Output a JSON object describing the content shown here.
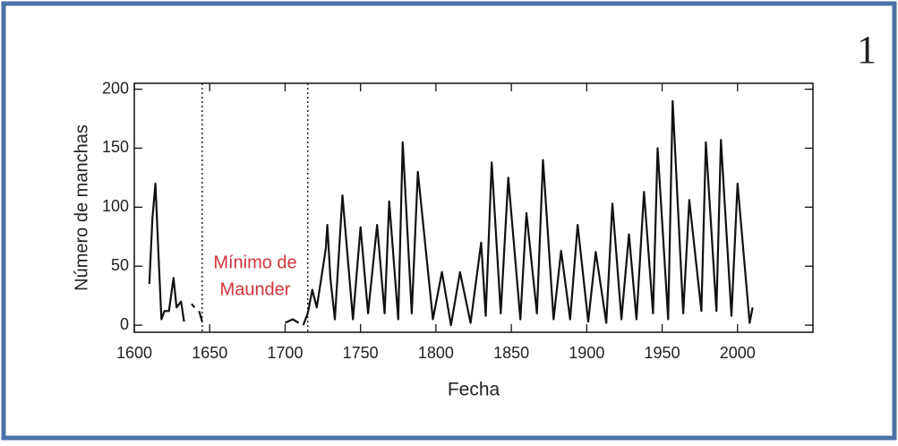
{
  "chart_data": {
    "type": "line",
    "panel_label": "1",
    "xlabel": "Fecha",
    "ylabel": "Número de manchas",
    "annotation_lines": [
      "Mínimo de",
      "Maunder"
    ],
    "annotation_color": "#d0343a",
    "vlines": [
      1645,
      1715
    ],
    "xlim": [
      1600,
      2050
    ],
    "ylim": [
      -6,
      205
    ],
    "xticks": [
      1600,
      1650,
      1700,
      1750,
      1800,
      1850,
      1900,
      1950,
      2000
    ],
    "yticks": [
      0,
      50,
      100,
      150,
      200
    ],
    "series": [
      {
        "color": "#111111",
        "x": [
          1610,
          1612,
          1614,
          1616,
          1618,
          1620,
          1623,
          1626,
          1628,
          1631,
          1633,
          null,
          1638,
          1640,
          null,
          1643,
          1645,
          null,
          1700,
          1705,
          1709,
          null,
          1712,
          1715,
          1718,
          1721,
          1724,
          1727,
          1728,
          1730,
          1733,
          1738,
          1745,
          1750,
          1755,
          1761,
          1766,
          1769,
          1775,
          1778,
          1784,
          1788,
          1798,
          1804,
          1810,
          1816,
          1823,
          1830,
          1833,
          1837,
          1843,
          1848,
          1856,
          1860,
          1867,
          1871,
          1878,
          1883,
          1889,
          1894,
          1901,
          1906,
          1913,
          1917,
          1923,
          1928,
          1933,
          1938,
          1944,
          1947,
          1954,
          1957,
          1964,
          1968,
          1976,
          1979,
          1986,
          1989,
          1996,
          2000,
          2008,
          2010
        ],
        "values": [
          35,
          90,
          120,
          60,
          5,
          12,
          12,
          40,
          15,
          20,
          3,
          null,
          18,
          15,
          null,
          12,
          3,
          null,
          2,
          5,
          2,
          null,
          0,
          10,
          30,
          15,
          40,
          65,
          85,
          40,
          5,
          110,
          5,
          83,
          10,
          85,
          10,
          105,
          5,
          155,
          10,
          130,
          5,
          45,
          0,
          45,
          2,
          70,
          8,
          138,
          10,
          125,
          5,
          95,
          10,
          140,
          5,
          63,
          5,
          85,
          3,
          62,
          2,
          103,
          5,
          77,
          5,
          113,
          10,
          150,
          5,
          190,
          10,
          106,
          12,
          155,
          12,
          157,
          8,
          120,
          2,
          15
        ]
      }
    ]
  }
}
